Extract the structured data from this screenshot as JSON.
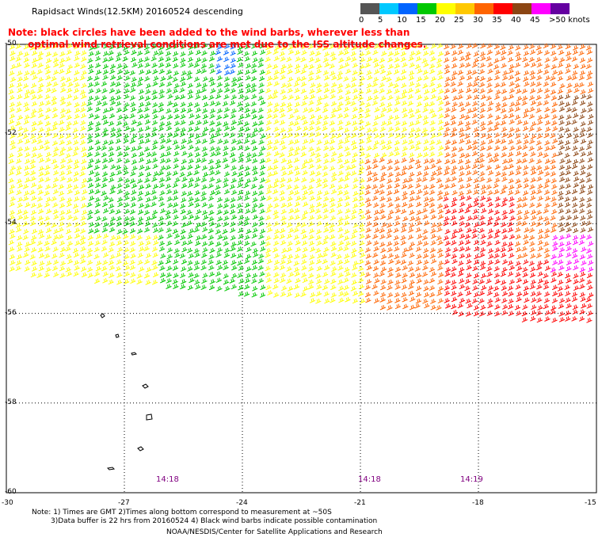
{
  "title": "Rapidsact Winds(12.5KM) 20160524 descending",
  "note_line1": "Note: black circles have been added to the wind barbs, wherever less than",
  "note_line2": "      optimal wind retrieval conditions are met due to the ISS altitude changes.",
  "color_scale": {
    "labels": [
      "0",
      "5",
      "10",
      "15",
      "20",
      "25",
      "30",
      "35",
      "40",
      "45",
      ">50 knots"
    ],
    "colors": [
      "#555555",
      "#00c8ff",
      "#0064ff",
      "#00c800",
      "#ffff00",
      "#ffc800",
      "#ff6400",
      "#ff0000",
      "#8b4513",
      "#ff00ff",
      "#6400a0"
    ]
  },
  "latitude_labels": [
    "-50",
    "-52",
    "-54",
    "-56",
    "-58",
    "-60"
  ],
  "longitude_labels": [
    "-30",
    "-27",
    "-24",
    "-21",
    "-18",
    "-15"
  ],
  "time_labels": [
    "14:18",
    "14:18",
    "14:19"
  ],
  "footer": {
    "line1": "Note: 1) Times are GMT 2)Times along bottom correspond to measurement at ~50S",
    "line2": "3)Data buffer is 22 hrs from 20160524 4) Black wind barbs indicate possible contamination",
    "line3": "NOAA/NESDIS/Center for Satellite Applications and Research"
  }
}
